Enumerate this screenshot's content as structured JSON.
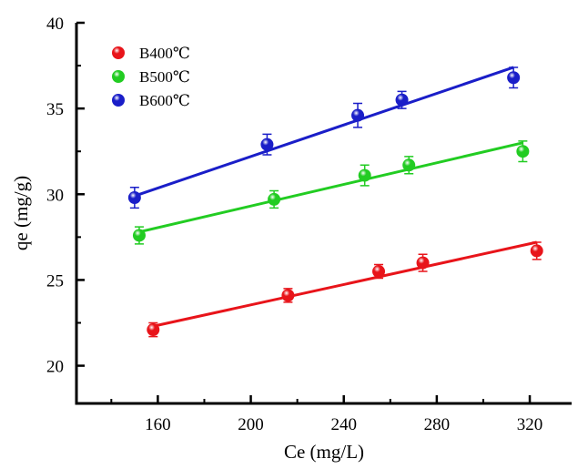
{
  "chart_data": {
    "type": "scatter",
    "xlabel": "Ce (mg/L)",
    "ylabel": "qe (mg/g)",
    "xlim": [
      125,
      338
    ],
    "ylim": [
      17.8,
      40
    ],
    "x_ticks": [
      160,
      200,
      240,
      280,
      320
    ],
    "y_ticks": [
      20,
      25,
      30,
      35,
      40
    ],
    "x_minor_ticks": [
      140,
      180,
      220,
      260,
      300,
      320
    ],
    "grid": false,
    "legend_position": "top-left",
    "series": [
      {
        "name": "B400℃",
        "color": "#e8141a",
        "points": [
          {
            "x": 158,
            "y": 22.1,
            "err": 0.4
          },
          {
            "x": 216,
            "y": 24.1,
            "err": 0.4
          },
          {
            "x": 255,
            "y": 25.5,
            "err": 0.4
          },
          {
            "x": 274,
            "y": 26.0,
            "err": 0.5
          },
          {
            "x": 323,
            "y": 26.7,
            "err": 0.5
          }
        ],
        "fit": [
          [
            158,
            22.3
          ],
          [
            323,
            27.2
          ]
        ]
      },
      {
        "name": "B500℃",
        "color": "#22cc22",
        "points": [
          {
            "x": 152,
            "y": 27.6,
            "err": 0.5
          },
          {
            "x": 210,
            "y": 29.7,
            "err": 0.5
          },
          {
            "x": 249,
            "y": 31.1,
            "err": 0.6
          },
          {
            "x": 268,
            "y": 31.7,
            "err": 0.5
          },
          {
            "x": 317,
            "y": 32.5,
            "err": 0.6
          }
        ],
        "fit": [
          [
            152,
            27.8
          ],
          [
            317,
            33.0
          ]
        ]
      },
      {
        "name": "B600℃",
        "color": "#1a1ec8",
        "points": [
          {
            "x": 150,
            "y": 29.8,
            "err": 0.6
          },
          {
            "x": 207,
            "y": 32.9,
            "err": 0.6
          },
          {
            "x": 246,
            "y": 34.6,
            "err": 0.7
          },
          {
            "x": 265,
            "y": 35.5,
            "err": 0.5
          },
          {
            "x": 313,
            "y": 36.8,
            "err": 0.6
          }
        ],
        "fit": [
          [
            150,
            29.9
          ],
          [
            313,
            37.4
          ]
        ]
      }
    ]
  }
}
